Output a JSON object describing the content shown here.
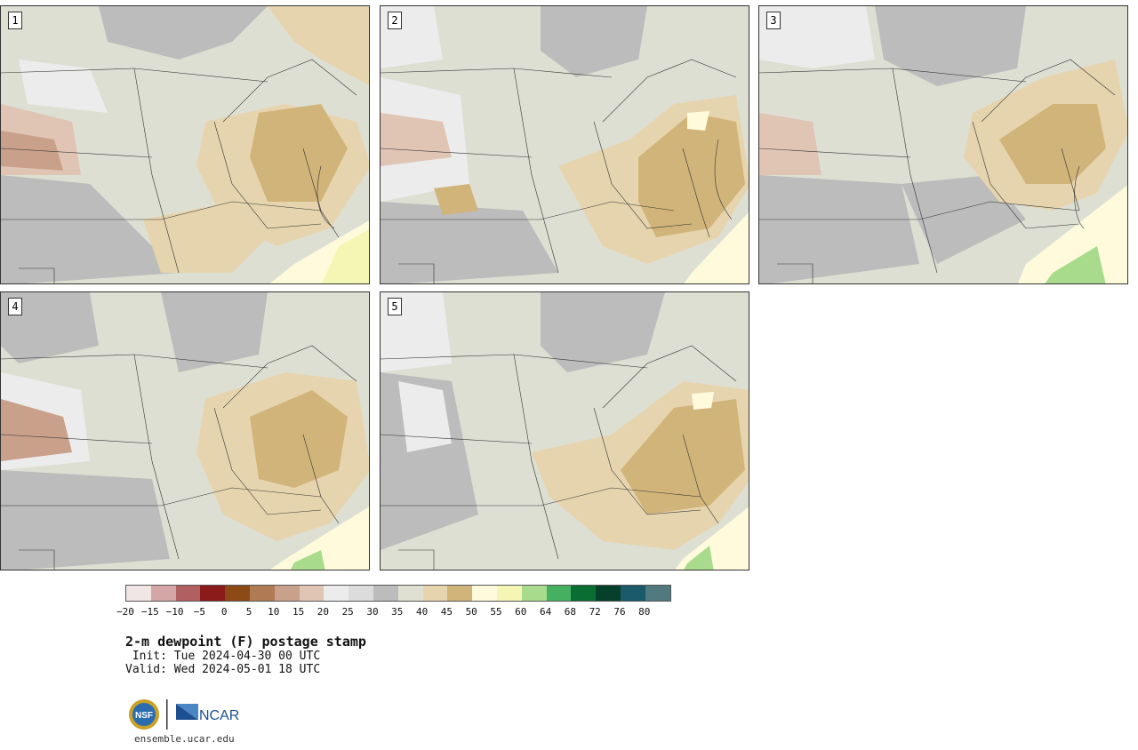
{
  "panels": [
    {
      "label": "1"
    },
    {
      "label": "2"
    },
    {
      "label": "3"
    },
    {
      "label": "4"
    },
    {
      "label": "5"
    }
  ],
  "colorbar": {
    "colors": [
      "#f1e6e6",
      "#d5a6a6",
      "#b06060",
      "#8b1a1a",
      "#8c4a16",
      "#b07a54",
      "#c9a08a",
      "#e0c4b4",
      "#ececec",
      "#dcdcdc",
      "#bcbcbc",
      "#e0e0d2",
      "#e6d4ae",
      "#d1b47a",
      "#fffadc",
      "#f4f7b4",
      "#a8dc8c",
      "#44b060",
      "#0a6e32",
      "#06402a",
      "#1a5a6a",
      "#507a80"
    ],
    "tick_labels": [
      "−20",
      "−15",
      "−10",
      "−5",
      "0",
      "5",
      "10",
      "15",
      "20",
      "25",
      "30",
      "35",
      "40",
      "45",
      "50",
      "55",
      "60",
      "64",
      "68",
      "72",
      "76",
      "80"
    ]
  },
  "title": "2-m dewpoint (F) postage stamp",
  "init": " Init: Tue 2024-04-30 00 UTC",
  "valid": "Valid: Wed 2024-05-01 18 UTC",
  "logos": {
    "nsf": "NSF",
    "ncar": "NCAR"
  },
  "site": "ensemble.ucar.edu"
}
